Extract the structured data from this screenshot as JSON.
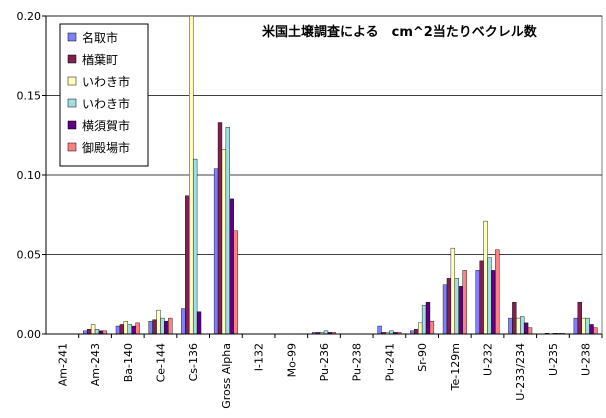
{
  "chart_data": {
    "type": "bar",
    "title": "米国土壌調査による　cm^2当たりベクレル数",
    "xlabel": "",
    "ylabel": "",
    "ylim": [
      0,
      0.2
    ],
    "yticks": [
      "0.00",
      "0.05",
      "0.10",
      "0.15",
      "0.20"
    ],
    "grid": true,
    "legend_position": "top-left",
    "categories": [
      "Am-241",
      "Am-243",
      "Ba-140",
      "Ce-144",
      "Cs-136",
      "Gross Alpha",
      "I-132",
      "Mo-99",
      "Pu-236",
      "Pu-238",
      "Pu-241",
      "Sr-90",
      "Te-129m",
      "U-232",
      "U-233/234",
      "U-235",
      "U-238"
    ],
    "series": [
      {
        "name": "名取市",
        "color": "#8080ff",
        "values": [
          0,
          0.002,
          0.005,
          0.008,
          0.016,
          0.104,
          0,
          0,
          0.001,
          0,
          0.005,
          0.002,
          0.031,
          0.04,
          0.01,
          0,
          0.01
        ]
      },
      {
        "name": "楢葉町",
        "color": "#802050",
        "values": [
          0,
          0.003,
          0.006,
          0.009,
          0.087,
          0.133,
          0,
          0,
          0.001,
          0,
          0.001,
          0.003,
          0.035,
          0.046,
          0.02,
          0.0005,
          0.02
        ]
      },
      {
        "name": "いわき市",
        "color": "#ffffc0",
        "values": [
          0,
          0.006,
          0.008,
          0.015,
          0.2,
          0.116,
          0,
          0,
          0.001,
          0,
          0.001,
          0.007,
          0.054,
          0.071,
          0.01,
          0,
          0.01
        ]
      },
      {
        "name": "いわき市",
        "color": "#a0e0e0",
        "values": [
          0,
          0.003,
          0.006,
          0.01,
          0.11,
          0.13,
          0,
          0,
          0.002,
          0,
          0.002,
          0.018,
          0.035,
          0.048,
          0.011,
          0.0005,
          0.01
        ]
      },
      {
        "name": "横須賀市",
        "color": "#600080",
        "values": [
          0,
          0.002,
          0.005,
          0.008,
          0.014,
          0.085,
          0,
          0,
          0.001,
          0,
          0.001,
          0.02,
          0.03,
          0.04,
          0.007,
          0.0003,
          0.006
        ]
      },
      {
        "name": "御殿場市",
        "color": "#ff8080",
        "values": [
          0,
          0.002,
          0.007,
          0.01,
          0,
          0.065,
          0,
          0,
          0.001,
          0,
          0.001,
          0.008,
          0.04,
          0.053,
          0.004,
          0.0002,
          0.004
        ]
      }
    ]
  }
}
